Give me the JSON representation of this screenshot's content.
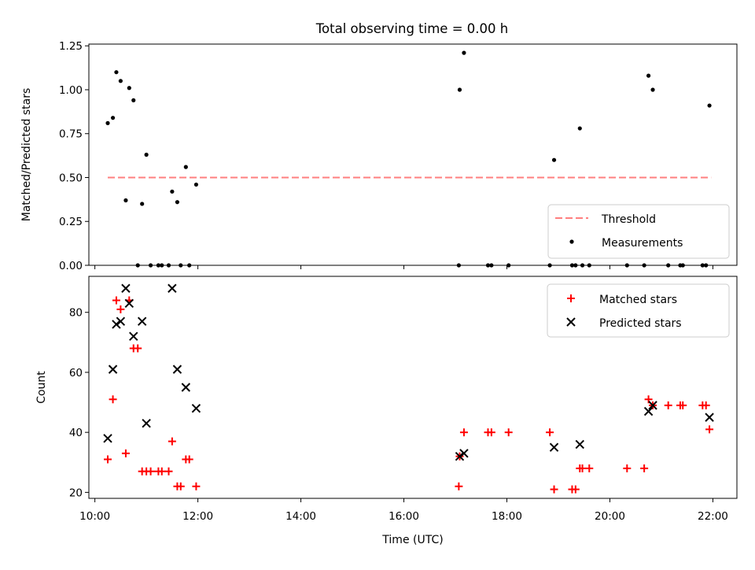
{
  "chart_data": [
    {
      "type": "scatter",
      "title": "Total observing time = 0.00 h",
      "xlabel": "",
      "ylabel": "Matched/Predicted stars",
      "xlim": [
        "09:53",
        "22:28"
      ],
      "ylim": [
        0,
        1.26
      ],
      "yticks": [
        "0.00",
        "0.25",
        "0.50",
        "0.75",
        "1.00",
        "1.25"
      ],
      "legend_position": "lower-right",
      "colors": {
        "threshold": "#ff7f7f",
        "measurements": "#000000"
      },
      "threshold": {
        "name": "Threshold",
        "y": 0.5,
        "x_start": "10:15",
        "x_end": "21:58"
      },
      "series": [
        {
          "name": "Measurements",
          "points": [
            [
              "10:15",
              0.81
            ],
            [
              "10:21",
              0.84
            ],
            [
              "10:25",
              1.1
            ],
            [
              "10:30",
              1.05
            ],
            [
              "10:36",
              0.37
            ],
            [
              "10:40",
              1.01
            ],
            [
              "10:45",
              0.94
            ],
            [
              "10:50",
              0.0
            ],
            [
              "10:55",
              0.35
            ],
            [
              "11:00",
              0.63
            ],
            [
              "11:05",
              0.0
            ],
            [
              "11:14",
              0.0
            ],
            [
              "11:18",
              0.0
            ],
            [
              "11:26",
              0.0
            ],
            [
              "11:30",
              0.42
            ],
            [
              "11:36",
              0.36
            ],
            [
              "11:40",
              0.0
            ],
            [
              "11:46",
              0.56
            ],
            [
              "11:50",
              0.0
            ],
            [
              "11:58",
              0.46
            ],
            [
              "17:04",
              0.0
            ],
            [
              "17:05",
              1.0
            ],
            [
              "17:10",
              1.21
            ],
            [
              "17:38",
              0.0
            ],
            [
              "17:42",
              0.0
            ],
            [
              "18:02",
              0.0
            ],
            [
              "18:50",
              0.0
            ],
            [
              "18:55",
              0.6
            ],
            [
              "19:16",
              0.0
            ],
            [
              "19:20",
              0.0
            ],
            [
              "19:25",
              0.78
            ],
            [
              "19:28",
              0.0
            ],
            [
              "19:36",
              0.0
            ],
            [
              "20:20",
              0.0
            ],
            [
              "20:40",
              0.0
            ],
            [
              "20:45",
              1.08
            ],
            [
              "20:50",
              1.0
            ],
            [
              "21:08",
              0.0
            ],
            [
              "21:22",
              0.0
            ],
            [
              "21:25",
              0.0
            ],
            [
              "21:48",
              0.0
            ],
            [
              "21:52",
              0.0
            ],
            [
              "21:56",
              0.91
            ]
          ]
        }
      ]
    },
    {
      "type": "scatter",
      "title": "",
      "xlabel": "Time (UTC)",
      "ylabel": "Count",
      "xlim": [
        "09:53",
        "22:28"
      ],
      "ylim": [
        18,
        92
      ],
      "yticks": [
        "20",
        "40",
        "60",
        "80"
      ],
      "xticks": [
        "10:00",
        "12:00",
        "14:00",
        "16:00",
        "18:00",
        "20:00",
        "22:00"
      ],
      "legend_position": "upper-right",
      "colors": {
        "matched": "#ff0000",
        "predicted": "#000000"
      },
      "series": [
        {
          "name": "Matched stars",
          "marker": "+",
          "points": [
            [
              "10:15",
              31
            ],
            [
              "10:21",
              51
            ],
            [
              "10:25",
              84
            ],
            [
              "10:30",
              81
            ],
            [
              "10:36",
              33
            ],
            [
              "10:40",
              84
            ],
            [
              "10:45",
              68
            ],
            [
              "10:50",
              68
            ],
            [
              "10:55",
              27
            ],
            [
              "11:00",
              27
            ],
            [
              "11:05",
              27
            ],
            [
              "11:14",
              27
            ],
            [
              "11:18",
              27
            ],
            [
              "11:26",
              27
            ],
            [
              "11:30",
              37
            ],
            [
              "11:36",
              22
            ],
            [
              "11:40",
              22
            ],
            [
              "11:46",
              31
            ],
            [
              "11:50",
              31
            ],
            [
              "11:58",
              22
            ],
            [
              "17:04",
              22
            ],
            [
              "17:05",
              32
            ],
            [
              "17:10",
              40
            ],
            [
              "17:38",
              40
            ],
            [
              "17:42",
              40
            ],
            [
              "18:02",
              40
            ],
            [
              "18:50",
              40
            ],
            [
              "18:55",
              21
            ],
            [
              "19:16",
              21
            ],
            [
              "19:20",
              21
            ],
            [
              "19:25",
              28
            ],
            [
              "19:28",
              28
            ],
            [
              "19:36",
              28
            ],
            [
              "20:20",
              28
            ],
            [
              "20:40",
              28
            ],
            [
              "20:45",
              51
            ],
            [
              "20:50",
              49
            ],
            [
              "21:08",
              49
            ],
            [
              "21:22",
              49
            ],
            [
              "21:25",
              49
            ],
            [
              "21:48",
              49
            ],
            [
              "21:52",
              49
            ],
            [
              "21:56",
              41
            ]
          ]
        },
        {
          "name": "Predicted stars",
          "marker": "x",
          "points": [
            [
              "10:15",
              38
            ],
            [
              "10:21",
              61
            ],
            [
              "10:25",
              76
            ],
            [
              "10:30",
              77
            ],
            [
              "10:36",
              88
            ],
            [
              "10:40",
              83
            ],
            [
              "10:45",
              72
            ],
            [
              "10:55",
              77
            ],
            [
              "11:00",
              43
            ],
            [
              "11:30",
              88
            ],
            [
              "11:36",
              61
            ],
            [
              "11:46",
              55
            ],
            [
              "11:58",
              48
            ],
            [
              "17:05",
              32
            ],
            [
              "17:10",
              33
            ],
            [
              "18:55",
              35
            ],
            [
              "19:25",
              36
            ],
            [
              "20:45",
              47
            ],
            [
              "20:50",
              49
            ],
            [
              "21:56",
              45
            ]
          ]
        }
      ]
    }
  ]
}
